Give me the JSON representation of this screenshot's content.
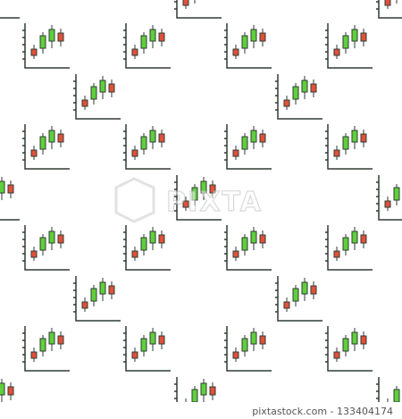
{
  "watermark": {
    "text": "PIXTA"
  },
  "footer": {
    "text": "pixtastock.com - 133404174"
  }
}
